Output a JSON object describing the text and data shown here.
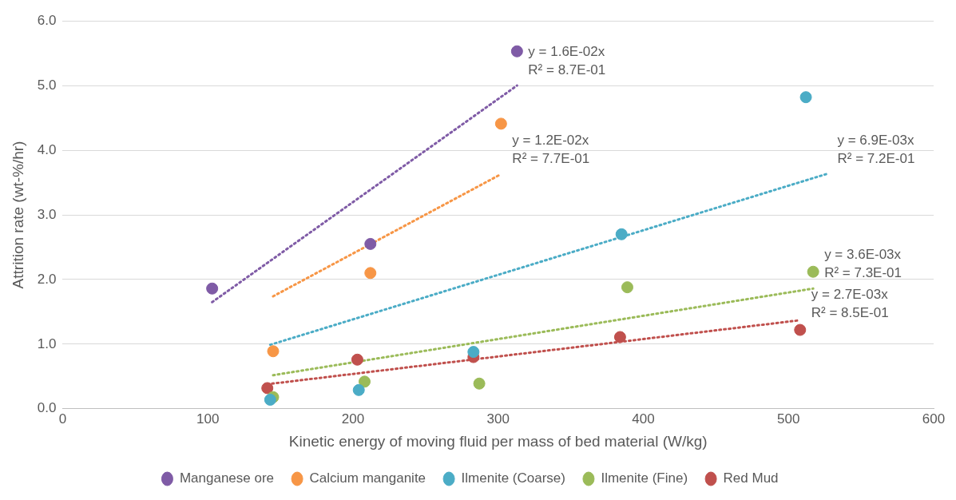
{
  "chart_data": {
    "type": "scatter",
    "xlabel": "Kinetic energy of moving fluid per mass of bed material (W/kg)",
    "ylabel": "Attrition rate (wt-%/hr)",
    "xlim": [
      0,
      600
    ],
    "xticks": [
      0,
      100,
      200,
      300,
      400,
      500,
      600
    ],
    "ylim": [
      0,
      6
    ],
    "yticks": [
      {
        "value": 0,
        "label": "0.0"
      },
      {
        "value": 1,
        "label": "1.0"
      },
      {
        "value": 2,
        "label": "2.0"
      },
      {
        "value": 3,
        "label": "3.0"
      },
      {
        "value": 4,
        "label": "4.0"
      },
      {
        "value": 5,
        "label": "5.0"
      },
      {
        "value": 6,
        "label": "6.0"
      }
    ],
    "grid": "y",
    "legend": "bottom",
    "marker": "circle",
    "series": [
      {
        "name": "Manganese ore",
        "color": "#7f5ba6",
        "x": [
          103,
          212,
          313
        ],
        "values": [
          1.86,
          2.55,
          5.53
        ]
      },
      {
        "name": "Calcium manganite",
        "color": "#f79646",
        "x": [
          145,
          212,
          302
        ],
        "values": [
          0.89,
          2.1,
          4.41
        ]
      },
      {
        "name": "Ilmenite (Coarse)",
        "color": "#4bacc6",
        "x": [
          143,
          204,
          283,
          385,
          512
        ],
        "values": [
          0.14,
          0.29,
          0.88,
          2.7,
          4.82
        ]
      },
      {
        "name": "Ilmenite (Fine)",
        "color": "#9bbb59",
        "x": [
          145,
          208,
          287,
          389,
          517
        ],
        "values": [
          0.18,
          0.42,
          0.39,
          1.88,
          2.12
        ]
      },
      {
        "name": "Red Mud",
        "color": "#c0504d",
        "x": [
          141,
          203,
          283,
          384,
          508
        ],
        "values": [
          0.32,
          0.76,
          0.8,
          1.11,
          1.22
        ]
      },
      {
        "type": "line",
        "line_style": "dotted",
        "marker": "none",
        "color": "#7f5ba6",
        "x": [
          103,
          313
        ],
        "values": [
          1.65,
          5.0
        ]
      },
      {
        "type": "line",
        "line_style": "dotted",
        "marker": "none",
        "color": "#f79646",
        "x": [
          145,
          302
        ],
        "values": [
          1.74,
          3.63
        ]
      },
      {
        "type": "line",
        "line_style": "dotted",
        "marker": "none",
        "color": "#4bacc6",
        "x": [
          143,
          526
        ],
        "values": [
          0.99,
          3.63
        ]
      },
      {
        "type": "line",
        "line_style": "dotted",
        "marker": "none",
        "color": "#9bbb59",
        "x": [
          145,
          517
        ],
        "values": [
          0.52,
          1.86
        ]
      },
      {
        "type": "line",
        "line_style": "dotted",
        "marker": "none",
        "color": "#c0504d",
        "x": [
          141,
          508
        ],
        "values": [
          0.38,
          1.37
        ]
      }
    ],
    "annotations": [
      "y = 1.6E-02x\nR² = 8.7E-01",
      "y = 1.2E-02x\nR² = 7.7E-01",
      "y = 6.9E-03x\nR² = 7.2E-01",
      "y = 3.6E-03x\nR² = 7.3E-01",
      "y = 2.7E-03x\nR² = 8.5E-01"
    ]
  }
}
